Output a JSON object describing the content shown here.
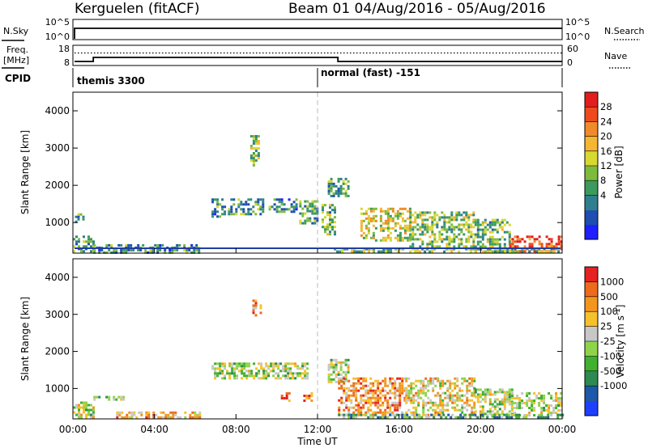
{
  "header": {
    "station": "Kerguelen (fitACF)",
    "beam_range": "Beam 01 04/Aug/2016 - 05/Aug/2016"
  },
  "summary_panels": {
    "nsky_label": "N.Sky",
    "nsky_ticks": [
      "10^5",
      "10^0"
    ],
    "nsearch_label": "N.Search",
    "nsearch_ticks": [
      "10^5",
      "10^0"
    ],
    "freq_label_line1": "Freq.",
    "freq_label_line2": "[MHz]",
    "freq_ticks": [
      "18",
      "8"
    ],
    "nave_label": "Nave",
    "nave_ticks": [
      "60",
      "0"
    ],
    "cpid_label": "CPID",
    "cpid_segments": [
      {
        "label": "themis 3300",
        "start_hour": 0,
        "end_hour": 12
      },
      {
        "label": "normal (fast) -151",
        "start_hour": 12,
        "end_hour": 24
      }
    ],
    "freq_steps_mhz": [
      [
        0,
        10
      ],
      [
        1,
        12
      ],
      [
        13,
        10
      ]
    ],
    "nave_level": 0.62
  },
  "chart_data": [
    {
      "type": "heatmap",
      "name": "power",
      "ylabel": "Slant Range [km]",
      "yticks": [
        1000,
        2000,
        3000,
        4000
      ],
      "ylim": [
        180,
        4500
      ],
      "xlim": [
        0,
        24
      ],
      "colorbar_label": "Power [dB]",
      "colorbar_ticks": [
        "28",
        "24",
        "20",
        "16",
        "12",
        "8",
        "4"
      ],
      "colorbar_colors": [
        "#1f1fff",
        "#1e4fb0",
        "#2f7f8f",
        "#3c9a5e",
        "#7dbb3d",
        "#d8d832",
        "#f5b632",
        "#f08a2a",
        "#ee4a1e",
        "#e31d1d"
      ],
      "regions": [
        {
          "x": [
            0.0,
            1.0
          ],
          "y": [
            200,
            650
          ],
          "level": 0.35
        },
        {
          "x": [
            0.1,
            0.5
          ],
          "y": [
            1000,
            1250
          ],
          "level": 0.4
        },
        {
          "x": [
            1.0,
            6.2
          ],
          "y": [
            200,
            420
          ],
          "level": 0.3
        },
        {
          "x": [
            6.8,
            7.5
          ],
          "y": [
            1150,
            1650
          ],
          "level": 0.3
        },
        {
          "x": [
            7.6,
            9.3
          ],
          "y": [
            1200,
            1650
          ],
          "level": 0.35
        },
        {
          "x": [
            8.7,
            9.1
          ],
          "y": [
            2550,
            3350
          ],
          "level": 0.45
        },
        {
          "x": [
            9.6,
            11.0
          ],
          "y": [
            1300,
            1650
          ],
          "level": 0.3
        },
        {
          "x": [
            11.1,
            12.0
          ],
          "y": [
            1000,
            1600
          ],
          "level": 0.35
        },
        {
          "x": [
            12.2,
            12.8
          ],
          "y": [
            700,
            1500
          ],
          "level": 0.4
        },
        {
          "x": [
            12.5,
            13.5
          ],
          "y": [
            1700,
            2200
          ],
          "level": 0.35
        },
        {
          "x": [
            14.1,
            16.5
          ],
          "y": [
            500,
            1400
          ],
          "level": 0.55
        },
        {
          "x": [
            16.5,
            19.7
          ],
          "y": [
            350,
            1300
          ],
          "level": 0.45
        },
        {
          "x": [
            19.7,
            21.4
          ],
          "y": [
            250,
            1100
          ],
          "level": 0.4
        },
        {
          "x": [
            21.4,
            24.0
          ],
          "y": [
            200,
            650
          ],
          "level": 0.9
        },
        {
          "x": [
            12.8,
            24.0
          ],
          "y": [
            200,
            320
          ],
          "level": 0.45
        }
      ]
    },
    {
      "type": "heatmap",
      "name": "velocity",
      "ylabel": "Slant Range [km]",
      "yticks": [
        1000,
        2000,
        3000,
        4000
      ],
      "ylim": [
        180,
        4500
      ],
      "xlim": [
        0,
        24
      ],
      "xlabel": "Time UT",
      "xticks": [
        "00:00",
        "04:00",
        "08:00",
        "12:00",
        "16:00",
        "20:00",
        "00:00"
      ],
      "colorbar_label": "Velocity [m s^-1]",
      "colorbar_ticks": [
        "1000",
        "500",
        "100",
        "25",
        "-25",
        "-100",
        "-500",
        "-1000"
      ],
      "colorbar_colors": [
        "#1f3fff",
        "#1e58a8",
        "#2c8a52",
        "#3fb030",
        "#8fd34a",
        "#c7c7c7",
        "#f5c12c",
        "#f2961e",
        "#ee6a1c",
        "#e42222"
      ],
      "regions": [
        {
          "x": [
            0.0,
            1.0
          ],
          "y": [
            250,
            650
          ],
          "level": 0.5
        },
        {
          "x": [
            1.0,
            2.5
          ],
          "y": [
            680,
            800
          ],
          "level": 0.45
        },
        {
          "x": [
            2.0,
            6.2
          ],
          "y": [
            200,
            380
          ],
          "level": 0.7
        },
        {
          "x": [
            6.8,
            11.5
          ],
          "y": [
            1250,
            1700
          ],
          "level": 0.5
        },
        {
          "x": [
            8.8,
            9.2
          ],
          "y": [
            2950,
            3400
          ],
          "level": 0.8
        },
        {
          "x": [
            10.2,
            10.6
          ],
          "y": [
            680,
            900
          ],
          "level": 0.85
        },
        {
          "x": [
            11.3,
            11.7
          ],
          "y": [
            650,
            900
          ],
          "level": 0.85
        },
        {
          "x": [
            12.5,
            13.5
          ],
          "y": [
            1200,
            1800
          ],
          "level": 0.5
        },
        {
          "x": [
            13.0,
            16.3
          ],
          "y": [
            300,
            1300
          ],
          "level": 0.75
        },
        {
          "x": [
            16.3,
            19.7
          ],
          "y": [
            300,
            1300
          ],
          "level": 0.6
        },
        {
          "x": [
            19.7,
            21.5
          ],
          "y": [
            250,
            1000
          ],
          "level": 0.5
        },
        {
          "x": [
            21.5,
            24.0
          ],
          "y": [
            250,
            900
          ],
          "level": 0.5
        },
        {
          "x": [
            13.0,
            24.0
          ],
          "y": [
            200,
            320
          ],
          "level": 0.35
        }
      ]
    }
  ]
}
